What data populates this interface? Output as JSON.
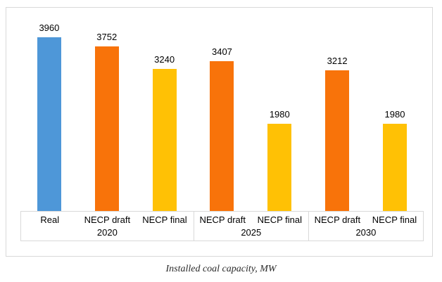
{
  "caption": "Installed coal capacity, MW",
  "chart_data": {
    "type": "bar",
    "title": "Installed coal capacity, MW",
    "unit": "MW",
    "ylim": [
      0,
      4635
    ],
    "grid": false,
    "legend": "none",
    "colors": {
      "blue": "#4e97d8",
      "orange": "#f8730a",
      "yellow": "#ffc105"
    },
    "groups": [
      {
        "year": "2020",
        "bars": [
          {
            "label": "Real",
            "value": 3960,
            "color": "blue"
          },
          {
            "label": "NECP draft",
            "value": 3752,
            "color": "orange"
          },
          {
            "label": "NECP final",
            "value": 3240,
            "color": "yellow"
          }
        ]
      },
      {
        "year": "2025",
        "bars": [
          {
            "label": "NECP draft",
            "value": 3407,
            "color": "orange"
          },
          {
            "label": "NECP final",
            "value": 1980,
            "color": "yellow"
          }
        ]
      },
      {
        "year": "2030",
        "bars": [
          {
            "label": "NECP draft",
            "value": 3212,
            "color": "orange"
          },
          {
            "label": "NECP final",
            "value": 1980,
            "color": "yellow"
          }
        ]
      }
    ]
  }
}
